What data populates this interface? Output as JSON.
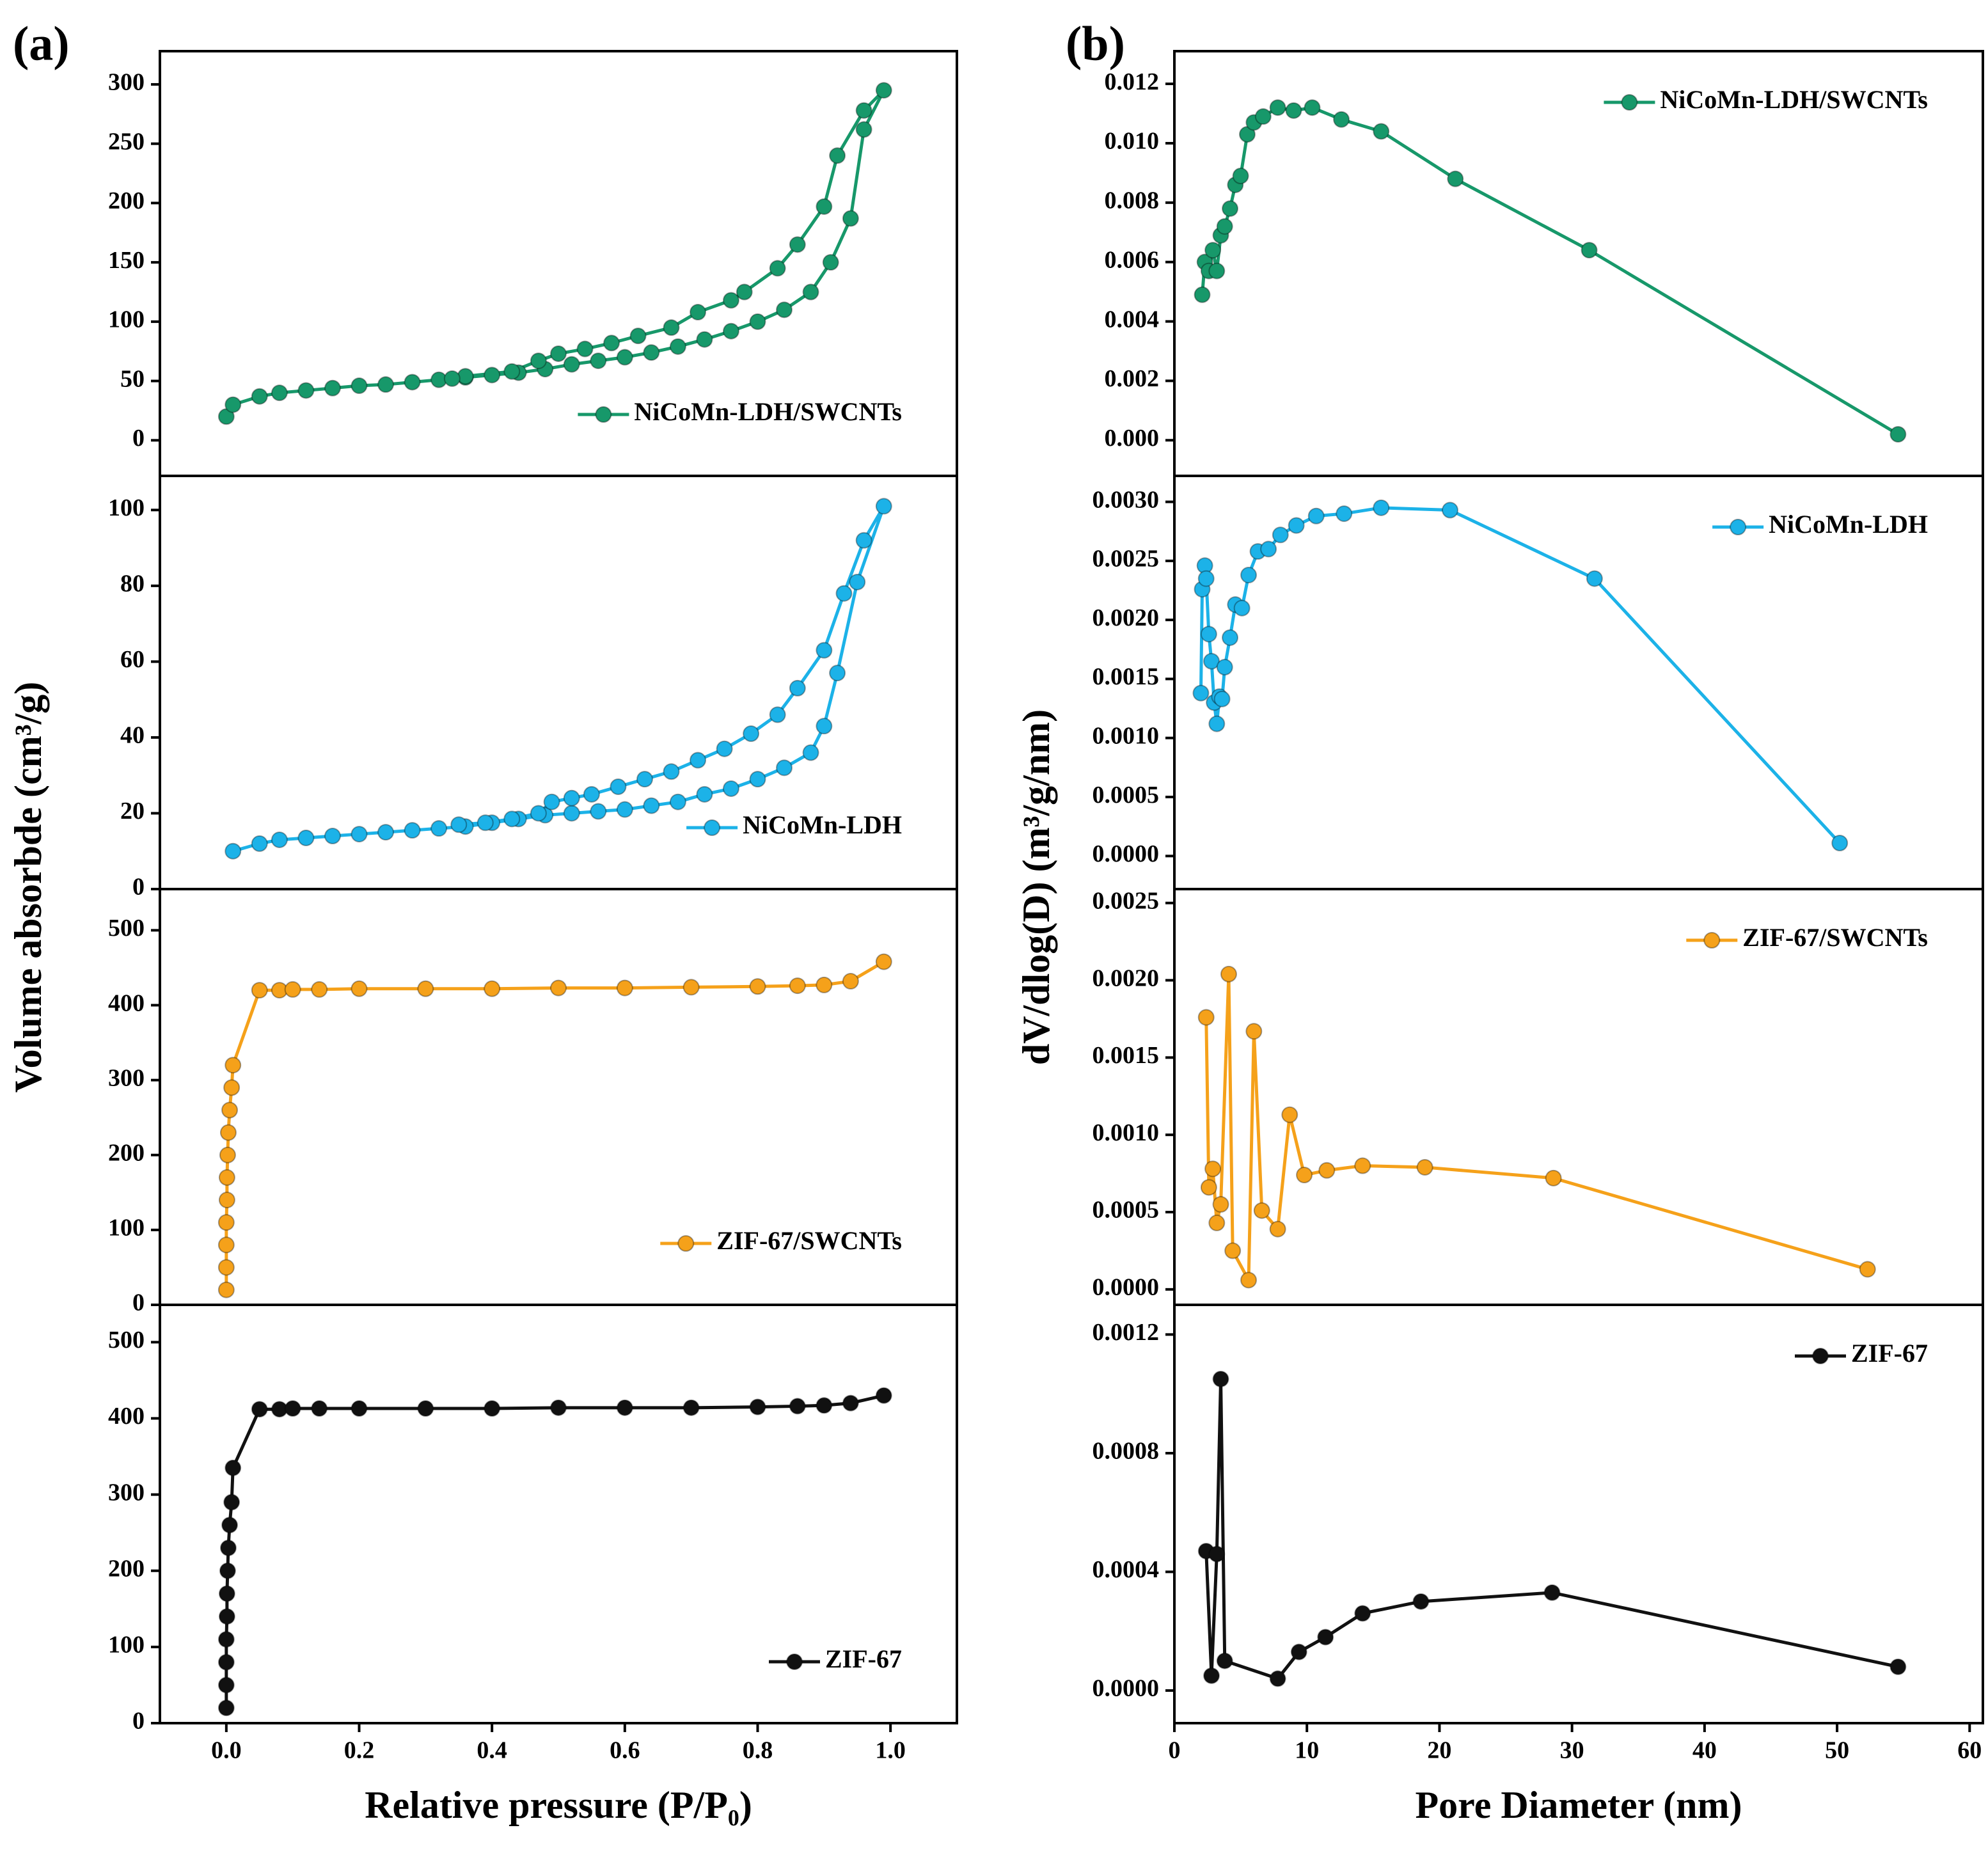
{
  "chart_data": [
    {
      "type": "line",
      "panel_label": "(a)",
      "ylabel": "Volume absorbde (cm³/g)",
      "xlim": [
        -0.1,
        1.1
      ],
      "ylim": [
        -30,
        328
      ],
      "yticks": [
        0,
        50,
        100,
        150,
        200,
        250,
        300
      ],
      "legend": "lower right",
      "x": [
        0,
        0.01,
        0.05,
        0.08,
        0.12,
        0.16,
        0.2,
        0.24,
        0.28,
        0.32,
        0.36,
        0.4,
        0.44,
        0.48,
        0.52,
        0.56,
        0.6,
        0.64,
        0.68,
        0.72,
        0.76,
        0.8,
        0.84,
        0.88,
        0.91,
        0.94,
        0.96,
        0.99,
        0.96,
        0.92,
        0.9,
        0.86,
        0.83,
        0.78,
        0.76,
        0.71,
        0.67,
        0.62,
        0.58,
        0.54,
        0.5,
        0.47,
        0.43,
        0.36,
        0.34
      ],
      "series": [
        {
          "name": "NiCoMn-LDH/SWCNTs",
          "color": "#17986a",
          "values": [
            20,
            30,
            37,
            40,
            42,
            44,
            46,
            47,
            49,
            51,
            53,
            55,
            57,
            60,
            64,
            67,
            70,
            74,
            79,
            85,
            92,
            100,
            110,
            125,
            150,
            187,
            262,
            295,
            278,
            240,
            197,
            165,
            145,
            125,
            118,
            108,
            95,
            88,
            82,
            77,
            73,
            67,
            58,
            54,
            52
          ]
        }
      ]
    },
    {
      "type": "line",
      "xlim": [
        -0.1,
        1.1
      ],
      "ylim": [
        0,
        109
      ],
      "yticks": [
        0,
        20,
        40,
        60,
        80,
        100
      ],
      "legend": "lower right",
      "x": [
        0.01,
        0.05,
        0.08,
        0.12,
        0.16,
        0.2,
        0.24,
        0.28,
        0.32,
        0.36,
        0.4,
        0.44,
        0.48,
        0.52,
        0.56,
        0.6,
        0.64,
        0.68,
        0.72,
        0.76,
        0.8,
        0.84,
        0.88,
        0.9,
        0.92,
        0.95,
        0.99,
        0.96,
        0.93,
        0.9,
        0.86,
        0.83,
        0.79,
        0.75,
        0.71,
        0.67,
        0.63,
        0.59,
        0.55,
        0.52,
        0.49,
        0.47,
        0.43,
        0.39,
        0.35
      ],
      "series": [
        {
          "name": "NiCoMn-LDH",
          "color": "#1cb2e8",
          "values": [
            10,
            12,
            13,
            13.5,
            14,
            14.5,
            15,
            15.5,
            16,
            16.5,
            17.5,
            18.5,
            19.5,
            20,
            20.5,
            21,
            22,
            23,
            25,
            26.5,
            29,
            32,
            36,
            43,
            57,
            81,
            101,
            92,
            78,
            63,
            53,
            46,
            41,
            37,
            34,
            31,
            29,
            27,
            25,
            24,
            23,
            20,
            18.5,
            17.5,
            17
          ]
        }
      ]
    },
    {
      "type": "line",
      "xlim": [
        -0.1,
        1.1
      ],
      "ylim": [
        0,
        555
      ],
      "yticks": [
        0,
        100,
        200,
        300,
        400,
        500
      ],
      "legend": "lower right",
      "x": [
        0,
        0,
        0,
        0,
        0.001,
        0.001,
        0.002,
        0.003,
        0.005,
        0.008,
        0.01,
        0.05,
        0.08,
        0.1,
        0.14,
        0.2,
        0.3,
        0.4,
        0.5,
        0.6,
        0.7,
        0.8,
        0.86,
        0.9,
        0.94,
        0.99
      ],
      "series": [
        {
          "name": "ZIF-67/SWCNTs",
          "color": "#f5a11a",
          "values": [
            20,
            50,
            80,
            110,
            140,
            170,
            200,
            230,
            260,
            290,
            320,
            420,
            420,
            421,
            421,
            422,
            422,
            422,
            423,
            423,
            424,
            425,
            426,
            427,
            432,
            458
          ]
        }
      ]
    },
    {
      "type": "line",
      "xlabel": "Relative pressure (P/P₀)",
      "xlim": [
        -0.1,
        1.1
      ],
      "ylim": [
        0,
        549
      ],
      "yticks": [
        0,
        100,
        200,
        300,
        400,
        500
      ],
      "legend": "lower right",
      "xticks": [
        {
          "value": 0,
          "label": "0.0"
        },
        {
          "value": 0.2,
          "label": "0.2"
        },
        {
          "value": 0.4,
          "label": "0.4"
        },
        {
          "value": 0.6,
          "label": "0.6"
        },
        {
          "value": 0.8,
          "label": "0.8"
        },
        {
          "value": 1,
          "label": "1.0"
        }
      ],
      "x": [
        0,
        0,
        0,
        0,
        0.001,
        0.001,
        0.002,
        0.003,
        0.005,
        0.008,
        0.01,
        0.05,
        0.08,
        0.1,
        0.14,
        0.2,
        0.3,
        0.4,
        0.5,
        0.6,
        0.7,
        0.8,
        0.86,
        0.9,
        0.94,
        0.99
      ],
      "series": [
        {
          "name": "ZIF-67",
          "color": "#111111",
          "values": [
            20,
            50,
            80,
            110,
            140,
            170,
            200,
            230,
            260,
            290,
            335,
            412,
            412,
            413,
            413,
            413,
            413,
            413,
            414,
            414,
            414,
            415,
            416,
            417,
            420,
            430
          ]
        }
      ]
    },
    {
      "type": "line",
      "panel_label": "(b)",
      "xlim": [
        0,
        61
      ],
      "ylim": [
        -0.0012,
        0.0131
      ],
      "legend": "upper right",
      "yticks": [
        {
          "value": 0,
          "label": "0.000"
        },
        {
          "value": 0.002,
          "label": "0.002"
        },
        {
          "value": 0.004,
          "label": "0.004"
        },
        {
          "value": 0.006,
          "label": "0.006"
        },
        {
          "value": 0.008,
          "label": "0.008"
        },
        {
          "value": 0.01,
          "label": "0.010"
        },
        {
          "value": 0.012,
          "label": "0.012"
        }
      ],
      "x": [
        2.1,
        2.3,
        2.6,
        2.9,
        3.2,
        3.5,
        3.8,
        4.2,
        4.6,
        5,
        5.5,
        6,
        6.7,
        7.8,
        9,
        10.4,
        12.6,
        15.6,
        21.2,
        31.3,
        54.6
      ],
      "series": [
        {
          "name": "NiCoMn-LDH/SWCNTs",
          "color": "#17986a",
          "values": [
            0.0049,
            0.006,
            0.0057,
            0.0064,
            0.0057,
            0.0069,
            0.0072,
            0.0078,
            0.0086,
            0.0089,
            0.0103,
            0.0107,
            0.0109,
            0.0112,
            0.0111,
            0.0112,
            0.0108,
            0.0104,
            0.0088,
            0.0064,
            0.0002
          ]
        }
      ]
    },
    {
      "type": "line",
      "xlim": [
        0,
        61
      ],
      "ylim": [
        -0.00028,
        0.00322
      ],
      "legend": "upper right",
      "yticks": [
        {
          "value": 0,
          "label": "0.0000"
        },
        {
          "value": 0.0005,
          "label": "0.0005"
        },
        {
          "value": 0.001,
          "label": "0.0010"
        },
        {
          "value": 0.0015,
          "label": "0.0015"
        },
        {
          "value": 0.002,
          "label": "0.0020"
        },
        {
          "value": 0.0025,
          "label": "0.0025"
        },
        {
          "value": 0.003,
          "label": "0.0030"
        }
      ],
      "x": [
        2,
        2.1,
        2.3,
        2.4,
        2.6,
        2.8,
        3,
        3.2,
        3.4,
        3.6,
        3.8,
        4.2,
        4.6,
        5.1,
        5.6,
        6.3,
        7.1,
        8,
        9.2,
        10.7,
        12.8,
        15.6,
        20.8,
        31.7,
        50.2
      ],
      "series": [
        {
          "name": "NiCoMn-LDH",
          "color": "#1cb2e8",
          "values": [
            0.00138,
            0.00226,
            0.00246,
            0.00235,
            0.00188,
            0.00165,
            0.0013,
            0.00112,
            0.00135,
            0.00133,
            0.0016,
            0.00185,
            0.00213,
            0.0021,
            0.00238,
            0.00258,
            0.0026,
            0.00272,
            0.0028,
            0.00288,
            0.0029,
            0.00295,
            0.00293,
            0.00235,
            0.00011
          ]
        }
      ]
    },
    {
      "type": "line",
      "ylabel": "dV/dlog(D) (m³/g/nm)",
      "xlim": [
        0,
        61
      ],
      "ylim": [
        -0.0001,
        0.00259
      ],
      "legend": "upper right",
      "yticks": [
        {
          "value": 0,
          "label": "0.0000"
        },
        {
          "value": 0.0005,
          "label": "0.0005"
        },
        {
          "value": 0.001,
          "label": "0.0010"
        },
        {
          "value": 0.0015,
          "label": "0.0015"
        },
        {
          "value": 0.002,
          "label": "0.0020"
        },
        {
          "value": 0.0025,
          "label": "0.0025"
        }
      ],
      "x": [
        2.4,
        2.6,
        2.9,
        3.2,
        3.5,
        4.1,
        4.4,
        5.6,
        6,
        6.6,
        7.8,
        8.7,
        9.8,
        11.5,
        14.2,
        18.9,
        28.6,
        52.3
      ],
      "series": [
        {
          "name": "ZIF-67/SWCNTs",
          "color": "#f5a11a",
          "values": [
            0.00176,
            0.00066,
            0.00078,
            0.00043,
            0.00055,
            0.00204,
            0.00025,
            6e-05,
            0.00167,
            0.00051,
            0.00039,
            0.00113,
            0.00074,
            0.00077,
            0.0008,
            0.00079,
            0.00072,
            0.00013
          ]
        }
      ]
    },
    {
      "type": "line",
      "xlabel": "Pore Diameter (nm)",
      "xlim": [
        0,
        61
      ],
      "ylim": [
        -0.00011,
        0.0013
      ],
      "legend": "upper right",
      "xticks": [
        0,
        10,
        20,
        30,
        40,
        50,
        60
      ],
      "yticks": [
        {
          "value": 0,
          "label": "0.0000"
        },
        {
          "value": 0.0004,
          "label": "0.0004"
        },
        {
          "value": 0.0008,
          "label": "0.0008"
        },
        {
          "value": 0.0012,
          "label": "0.0012"
        }
      ],
      "x": [
        2.4,
        2.8,
        3.2,
        3.5,
        3.8,
        7.8,
        9.4,
        11.4,
        14.2,
        18.6,
        28.5,
        54.6
      ],
      "series": [
        {
          "name": "ZIF-67",
          "color": "#111111",
          "values": [
            0.00047,
            5e-05,
            0.00046,
            0.00105,
            0.0001,
            4e-05,
            0.00013,
            0.00018,
            0.00026,
            0.0003,
            0.00033,
            8e-05
          ]
        }
      ]
    }
  ]
}
